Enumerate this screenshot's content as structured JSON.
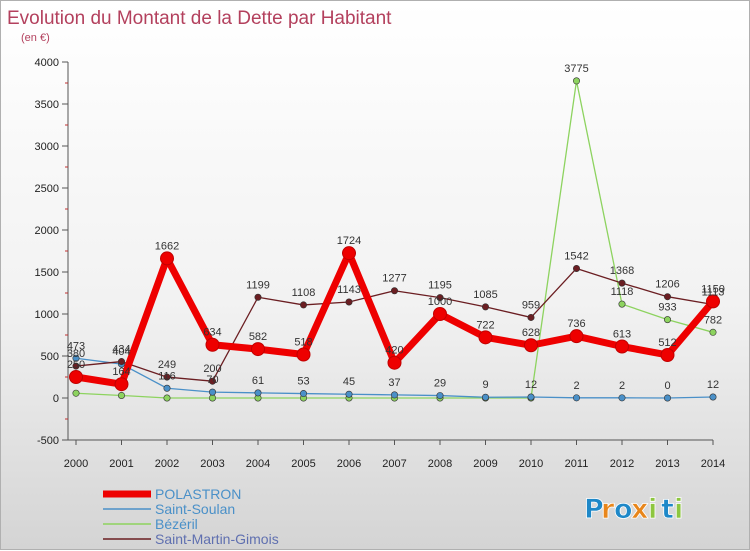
{
  "chart_data": {
    "type": "line",
    "title": "Evolution du Montant de la Dette par Habitant",
    "subtitle": "(en €)",
    "x": [
      "2000",
      "2001",
      "2002",
      "2003",
      "2004",
      "2005",
      "2006",
      "2007",
      "2008",
      "2009",
      "2010",
      "2011",
      "2012",
      "2013",
      "2014"
    ],
    "ylim": [
      -500,
      4000
    ],
    "yticks": [
      -500,
      0,
      500,
      1000,
      1500,
      2000,
      2500,
      3000,
      3500,
      4000
    ],
    "grid": false,
    "legend_position": "bottom-left",
    "series": [
      {
        "name": "POLASTRON",
        "color": "#ee0000",
        "values": [
          250,
          164,
          1662,
          634,
          582,
          518,
          1724,
          420,
          1000,
          722,
          628,
          736,
          613,
          512,
          1150
        ],
        "labels": [
          "250",
          "164",
          "1662",
          "634",
          "582",
          "518",
          "1724",
          "420",
          "1000",
          "722",
          "628",
          "736",
          "613",
          "512",
          "1150"
        ]
      },
      {
        "name": "Saint-Soulan",
        "color": "#4a90c8",
        "values": [
          473,
          404,
          116,
          70,
          61,
          53,
          45,
          37,
          29,
          9,
          12,
          2,
          2,
          0,
          12
        ],
        "labels": [
          "473",
          "404",
          "116",
          "70",
          "61",
          "53",
          "45",
          "37",
          "29",
          "9",
          "12",
          "2",
          "2",
          "0",
          "12"
        ]
      },
      {
        "name": "Bézéril",
        "color": "#8dd35f",
        "values": [
          57,
          30,
          0,
          0,
          0,
          0,
          0,
          0,
          0,
          0,
          0,
          3775,
          1118,
          933,
          782
        ],
        "labels": [
          "",
          "",
          "",
          "",
          "",
          "",
          "",
          "",
          "",
          "",
          "",
          "3775",
          "1118",
          "933",
          "782"
        ]
      },
      {
        "name": "Saint-Martin-Gimois",
        "color": "#6b1e22",
        "values": [
          380,
          434,
          249,
          200,
          1199,
          1108,
          1143,
          1277,
          1195,
          1085,
          959,
          1542,
          1368,
          1206,
          1113
        ],
        "labels": [
          "380",
          "434",
          "249",
          "200",
          "1199",
          "1108",
          "1143",
          "1277",
          "1195",
          "1085",
          "959",
          "1542",
          "1368",
          "1206",
          "1113"
        ]
      }
    ]
  },
  "brand": {
    "text": "Proxiti",
    "letters": [
      "P",
      "r",
      "o",
      "x",
      "i",
      "t",
      "i"
    ],
    "colors": [
      "#1e88c8",
      "#e8861b",
      "#1e88c8",
      "#e8861b",
      "#8dc63f",
      "#1e88c8",
      "#8dc63f"
    ]
  }
}
